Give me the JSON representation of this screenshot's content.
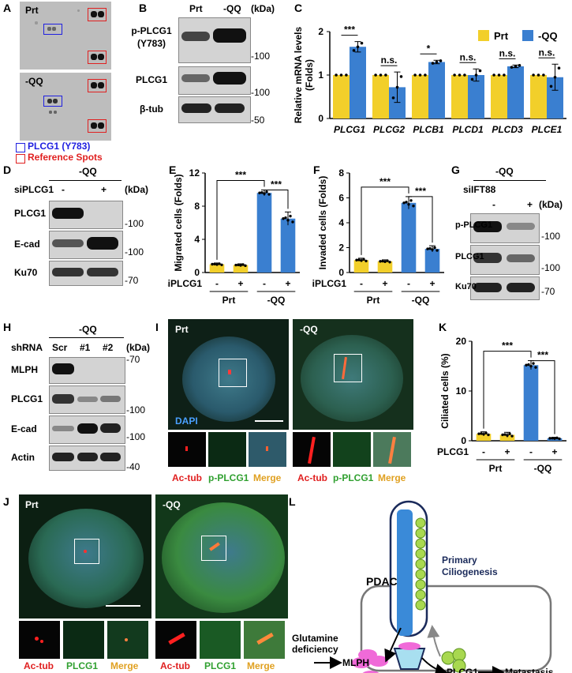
{
  "panels": {
    "A": "A",
    "B": "B",
    "C": "C",
    "D": "D",
    "E": "E",
    "F": "F",
    "G": "G",
    "H": "H",
    "I": "I",
    "J": "J",
    "K": "K",
    "L": "L"
  },
  "panelA": {
    "top_label": "Prt",
    "bottom_label": "-QQ",
    "legend_blue": "PLCG1 (Y783)",
    "legend_red": "Reference Spots",
    "blue_color": "#2020e0",
    "red_color": "#e02020"
  },
  "panelB": {
    "lanes": [
      "Prt",
      "-QQ"
    ],
    "unit": "(kDa)",
    "rows": [
      {
        "label1": "p-PLCG1",
        "label2": "(Y783)",
        "marker": "-100"
      },
      {
        "label1": "PLCG1",
        "label2": "",
        "marker": "-100"
      },
      {
        "label1": "β-tub",
        "label2": "",
        "marker": "-50"
      }
    ]
  },
  "panelD": {
    "group": "-QQ",
    "treatment": "siPLCG1",
    "signs": [
      "-",
      "+"
    ],
    "unit": "(kDa)",
    "rows": [
      {
        "label": "PLCG1",
        "marker": "-100"
      },
      {
        "label": "E-cad",
        "marker": "-100"
      },
      {
        "label": "Ku70",
        "marker": "-70"
      }
    ]
  },
  "panelG": {
    "group": "-QQ",
    "treatment": "siIFT88",
    "signs": [
      "-",
      "+"
    ],
    "unit": "(kDa)",
    "rows": [
      {
        "label": "p-PLCG1",
        "marker": "-100"
      },
      {
        "label": "PLCG1",
        "marker": "-100"
      },
      {
        "label": "Ku70",
        "marker": "-70"
      }
    ]
  },
  "panelH": {
    "group": "-QQ",
    "treatment": "shRNA",
    "lanes": [
      "Scr",
      "#1",
      "#2"
    ],
    "unit": "(kDa)",
    "rows": [
      {
        "label": "MLPH",
        "marker": "-70"
      },
      {
        "label": "PLCG1",
        "marker": "-100"
      },
      {
        "label": "E-cad",
        "marker": "-100"
      },
      {
        "label": "Actin",
        "marker": "-40"
      }
    ]
  },
  "panelI": {
    "left_label": "Prt",
    "right_label": "-QQ",
    "dapi": "DAPI",
    "insets": [
      "Ac-tub",
      "p-PLCG1",
      "Merge",
      "Ac-tub",
      "p-PLCG1",
      "Merge"
    ]
  },
  "panelJ": {
    "left_label": "Prt",
    "right_label": "-QQ",
    "insets": [
      "Ac-tub",
      "PLCG1",
      "Merge",
      "Ac-tub",
      "PLCG1",
      "Merge"
    ]
  },
  "panelL": {
    "pdac": "PDAC",
    "cilio1": "Primary",
    "cilio2": "Ciliogenesis",
    "glut1": "Glutamine",
    "glut2": "deficiency",
    "mlph": "MLPH",
    "plcg1": "PLCG1",
    "meta": "Metastasis"
  },
  "colors": {
    "prt": "#f2cf2a",
    "qq": "#3a7fd0",
    "sig": "#000000"
  },
  "chart_data": [
    {
      "type": "bar",
      "panel": "C",
      "ylabel": "Relative mRNA levels (Folds)",
      "ylim": [
        0,
        2
      ],
      "yticks": [
        "0",
        "1",
        "2"
      ],
      "categories": [
        "PLCG1",
        "PLCG2",
        "PLCB1",
        "PLCD1",
        "PLCD3",
        "PLCE1"
      ],
      "series": [
        {
          "name": "Prt",
          "values": [
            1,
            1,
            1,
            1,
            1,
            1
          ]
        },
        {
          "name": "-QQ",
          "values": [
            1.65,
            0.72,
            1.3,
            1.0,
            1.2,
            0.95
          ]
        }
      ],
      "errors": [
        0.12,
        0.35,
        0.04,
        0.14,
        0.03,
        0.3
      ],
      "significance": [
        "***",
        "n.s.",
        "*",
        "n.s.",
        "n.s.",
        "n.s."
      ],
      "legend_position": "top-right"
    },
    {
      "type": "bar",
      "panel": "E",
      "ylabel": "Migrated cells (Folds)",
      "ylim": [
        0,
        12
      ],
      "yticks": [
        "0",
        "4",
        "8",
        "12"
      ],
      "treatment": "siPLCG1",
      "signs": [
        "-",
        "+",
        "-",
        "+"
      ],
      "groups": [
        "Prt",
        "-QQ"
      ],
      "values": [
        1.0,
        0.9,
        9.6,
        6.5
      ],
      "errors": [
        0.15,
        0.15,
        0.35,
        0.8
      ],
      "significance": [
        "***",
        "***"
      ]
    },
    {
      "type": "bar",
      "panel": "F",
      "ylabel": "Invaded cells (Folds)",
      "ylim": [
        0,
        8
      ],
      "yticks": [
        "0",
        "2",
        "4",
        "6",
        "8"
      ],
      "treatment": "siPLCG1",
      "signs": [
        "-",
        "+",
        "-",
        "+"
      ],
      "groups": [
        "Prt",
        "-QQ"
      ],
      "values": [
        1.0,
        0.9,
        5.6,
        1.9
      ],
      "errors": [
        0.15,
        0.12,
        0.5,
        0.25
      ],
      "significance": [
        "***",
        "***"
      ]
    },
    {
      "type": "bar",
      "panel": "K",
      "ylabel": "Ciliated cells (%)",
      "ylim": [
        0,
        20
      ],
      "yticks": [
        "0",
        "10",
        "20"
      ],
      "treatment": "siPLCG1",
      "signs": [
        "-",
        "+",
        "-",
        "+"
      ],
      "groups": [
        "Prt",
        "-QQ"
      ],
      "values": [
        1.4,
        1.2,
        15.2,
        0.5
      ],
      "errors": [
        0.4,
        0.5,
        0.9,
        0.2
      ],
      "significance": [
        "***",
        "***"
      ]
    }
  ]
}
